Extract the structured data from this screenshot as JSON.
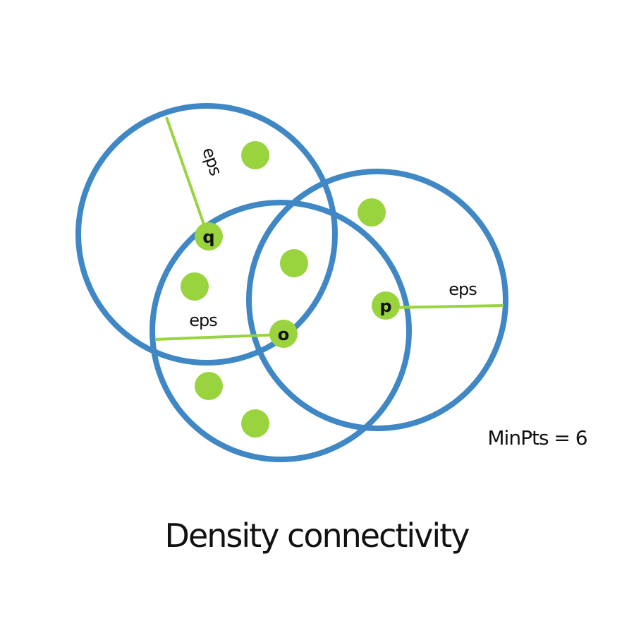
{
  "colors": {
    "circle": "#3f87c5",
    "point": "#99d33e",
    "radius_line": "#99d33e",
    "text": "#111111"
  },
  "labels": {
    "eps_q": "eps",
    "eps_o": "eps",
    "eps_p": "eps",
    "point_q": "q",
    "point_o": "o",
    "point_p": "p"
  },
  "min_pts": "MinPts = 6",
  "title": "Density connectivity"
}
